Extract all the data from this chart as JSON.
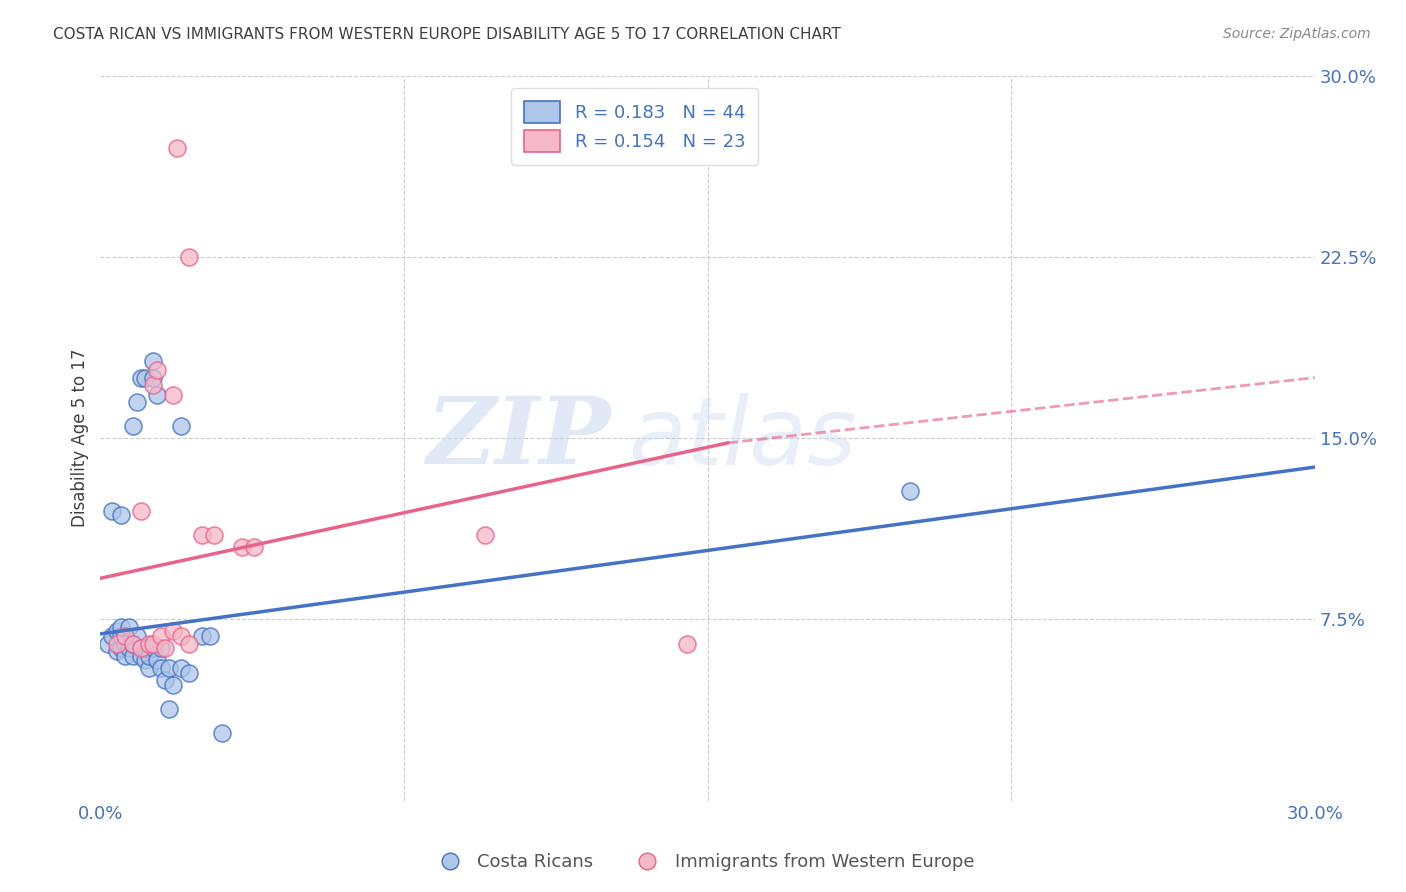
{
  "title": "COSTA RICAN VS IMMIGRANTS FROM WESTERN EUROPE DISABILITY AGE 5 TO 17 CORRELATION CHART",
  "source": "Source: ZipAtlas.com",
  "ylabel": "Disability Age 5 to 17",
  "xlim": [
    0.0,
    0.3
  ],
  "ylim": [
    0.0,
    0.3
  ],
  "xtick_positions": [
    0.0,
    0.075,
    0.15,
    0.225,
    0.3
  ],
  "xtick_labels": [
    "0.0%",
    "",
    "",
    "",
    "30.0%"
  ],
  "ytick_positions": [
    0.0,
    0.075,
    0.15,
    0.225,
    0.3
  ],
  "ytick_labels": [
    "",
    "7.5%",
    "15.0%",
    "22.5%",
    "30.0%"
  ],
  "blue_R": 0.183,
  "blue_N": 44,
  "pink_R": 0.154,
  "pink_N": 23,
  "blue_color": "#AEC6E8",
  "pink_color": "#F4B8C8",
  "blue_edge_color": "#4472C4",
  "pink_edge_color": "#E8638A",
  "blue_line_color": "#4472C4",
  "pink_line_color": "#E8638A",
  "blue_scatter": [
    [
      0.002,
      0.065
    ],
    [
      0.003,
      0.068
    ],
    [
      0.004,
      0.062
    ],
    [
      0.004,
      0.07
    ],
    [
      0.005,
      0.063
    ],
    [
      0.005,
      0.068
    ],
    [
      0.005,
      0.072
    ],
    [
      0.006,
      0.065
    ],
    [
      0.006,
      0.06
    ],
    [
      0.007,
      0.063
    ],
    [
      0.007,
      0.072
    ],
    [
      0.008,
      0.06
    ],
    [
      0.008,
      0.065
    ],
    [
      0.009,
      0.068
    ],
    [
      0.01,
      0.063
    ],
    [
      0.01,
      0.06
    ],
    [
      0.011,
      0.058
    ],
    [
      0.011,
      0.063
    ],
    [
      0.012,
      0.055
    ],
    [
      0.012,
      0.06
    ],
    [
      0.013,
      0.063
    ],
    [
      0.014,
      0.058
    ],
    [
      0.015,
      0.055
    ],
    [
      0.015,
      0.063
    ],
    [
      0.016,
      0.05
    ],
    [
      0.017,
      0.055
    ],
    [
      0.018,
      0.048
    ],
    [
      0.02,
      0.055
    ],
    [
      0.022,
      0.053
    ],
    [
      0.025,
      0.068
    ],
    [
      0.027,
      0.068
    ],
    [
      0.003,
      0.12
    ],
    [
      0.005,
      0.118
    ],
    [
      0.008,
      0.155
    ],
    [
      0.009,
      0.165
    ],
    [
      0.01,
      0.175
    ],
    [
      0.011,
      0.175
    ],
    [
      0.013,
      0.175
    ],
    [
      0.013,
      0.182
    ],
    [
      0.014,
      0.168
    ],
    [
      0.02,
      0.155
    ],
    [
      0.2,
      0.128
    ],
    [
      0.03,
      0.028
    ],
    [
      0.017,
      0.038
    ]
  ],
  "pink_scatter": [
    [
      0.004,
      0.065
    ],
    [
      0.006,
      0.068
    ],
    [
      0.008,
      0.065
    ],
    [
      0.01,
      0.063
    ],
    [
      0.012,
      0.065
    ],
    [
      0.013,
      0.065
    ],
    [
      0.015,
      0.068
    ],
    [
      0.016,
      0.063
    ],
    [
      0.018,
      0.07
    ],
    [
      0.02,
      0.068
    ],
    [
      0.022,
      0.065
    ],
    [
      0.01,
      0.12
    ],
    [
      0.013,
      0.172
    ],
    [
      0.014,
      0.178
    ],
    [
      0.018,
      0.168
    ],
    [
      0.025,
      0.11
    ],
    [
      0.028,
      0.11
    ],
    [
      0.035,
      0.105
    ],
    [
      0.038,
      0.105
    ],
    [
      0.095,
      0.11
    ],
    [
      0.145,
      0.065
    ],
    [
      0.019,
      0.27
    ],
    [
      0.022,
      0.225
    ]
  ],
  "watermark_zip": "ZIP",
  "watermark_atlas": "atlas",
  "background_color": "#FFFFFF",
  "grid_color": "#CCCCCC",
  "tick_color": "#4472C4",
  "title_color": "#404040",
  "ylabel_color": "#404040"
}
